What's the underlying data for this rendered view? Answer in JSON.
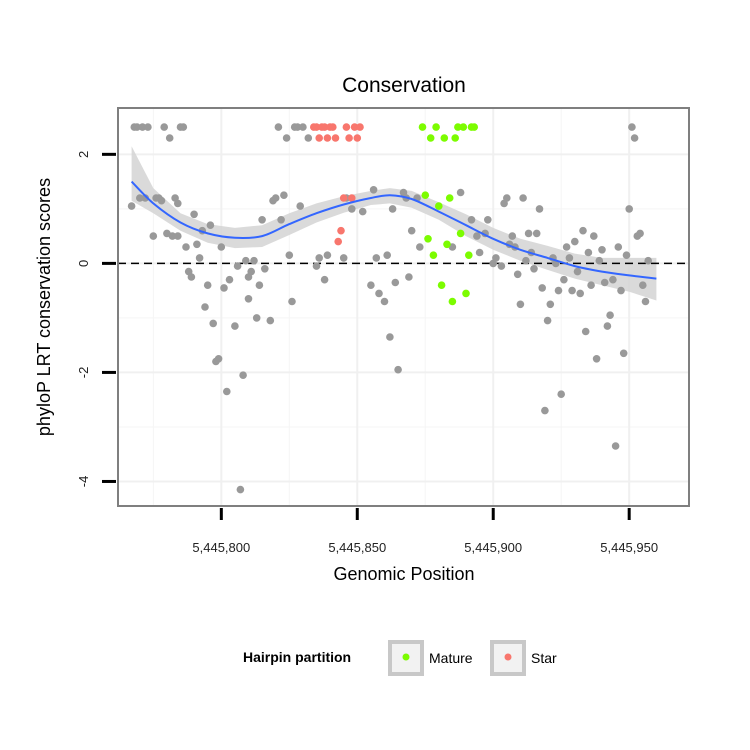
{
  "chart_data": {
    "type": "scatter",
    "title": "Conservation",
    "xlabel": "Genomic Position",
    "ylabel": "phyloP LRT conservation scores",
    "xlim": [
      5445762,
      5445972
    ],
    "ylim": [
      -4.45,
      2.85
    ],
    "x_ticks": [
      5445800,
      5445850,
      5445900,
      5445950
    ],
    "x_tick_labels": [
      "5,445,800",
      "5,445,850",
      "5,445,900",
      "5,445,950"
    ],
    "y_ticks": [
      -4,
      -2,
      0,
      2
    ],
    "y_tick_labels": [
      "-4",
      "-2",
      "0",
      "2"
    ],
    "reference_line": {
      "y": 0,
      "style": "dashed"
    },
    "grid": true,
    "colors": {
      "other": "#999999",
      "mature": "#7cfc00",
      "star": "#f8766d",
      "smooth": "#3366ff",
      "ribbon": "#d3d3d3",
      "border": "#7f7f7f",
      "refline": "#000000"
    },
    "legend": {
      "title": "Hairpin partition",
      "position": "bottom",
      "entries": [
        {
          "key": "mature",
          "label": "Mature"
        },
        {
          "key": "star",
          "label": "Star"
        }
      ]
    },
    "series": [
      {
        "name": "Other",
        "key": "other",
        "points": [
          [
            5445767,
            1.05
          ],
          [
            5445768,
            2.5
          ],
          [
            5445769,
            2.5
          ],
          [
            5445770,
            1.2
          ],
          [
            5445771,
            2.5
          ],
          [
            5445772,
            1.2
          ],
          [
            5445773,
            2.5
          ],
          [
            5445775,
            0.5
          ],
          [
            5445776,
            1.2
          ],
          [
            5445777,
            1.2
          ],
          [
            5445778,
            1.15
          ],
          [
            5445779,
            2.5
          ],
          [
            5445780,
            0.55
          ],
          [
            5445781,
            2.3
          ],
          [
            5445782,
            0.5
          ],
          [
            5445783,
            1.2
          ],
          [
            5445784,
            1.1
          ],
          [
            5445784,
            0.5
          ],
          [
            5445785,
            2.5
          ],
          [
            5445786,
            2.5
          ],
          [
            5445787,
            0.3
          ],
          [
            5445788,
            -0.15
          ],
          [
            5445789,
            -0.25
          ],
          [
            5445790,
            0.9
          ],
          [
            5445791,
            0.35
          ],
          [
            5445792,
            0.1
          ],
          [
            5445793,
            0.6
          ],
          [
            5445794,
            -0.8
          ],
          [
            5445795,
            -0.4
          ],
          [
            5445796,
            0.7
          ],
          [
            5445797,
            -1.1
          ],
          [
            5445798,
            -1.8
          ],
          [
            5445799,
            -1.75
          ],
          [
            5445800,
            0.3
          ],
          [
            5445801,
            -0.45
          ],
          [
            5445802,
            -2.35
          ],
          [
            5445803,
            -0.3
          ],
          [
            5445805,
            -1.15
          ],
          [
            5445806,
            -0.05
          ],
          [
            5445807,
            -4.15
          ],
          [
            5445808,
            -2.05
          ],
          [
            5445809,
            0.05
          ],
          [
            5445810,
            -0.25
          ],
          [
            5445810,
            -0.65
          ],
          [
            5445811,
            -0.15
          ],
          [
            5445812,
            0.05
          ],
          [
            5445813,
            -1.0
          ],
          [
            5445814,
            -0.4
          ],
          [
            5445815,
            0.8
          ],
          [
            5445816,
            -0.1
          ],
          [
            5445818,
            -1.05
          ],
          [
            5445819,
            1.15
          ],
          [
            5445820,
            1.2
          ],
          [
            5445821,
            2.5
          ],
          [
            5445822,
            0.8
          ],
          [
            5445823,
            1.25
          ],
          [
            5445824,
            2.3
          ],
          [
            5445825,
            0.15
          ],
          [
            5445826,
            -0.7
          ],
          [
            5445827,
            2.5
          ],
          [
            5445828,
            2.5
          ],
          [
            5445829,
            1.05
          ],
          [
            5445830,
            2.5
          ],
          [
            5445832,
            2.3
          ],
          [
            5445835,
            -0.05
          ],
          [
            5445836,
            0.1
          ],
          [
            5445838,
            -0.3
          ],
          [
            5445839,
            0.15
          ],
          [
            5445845,
            0.1
          ],
          [
            5445846,
            1.2
          ],
          [
            5445848,
            1.0
          ],
          [
            5445852,
            0.95
          ],
          [
            5445855,
            -0.4
          ],
          [
            5445856,
            1.35
          ],
          [
            5445857,
            0.1
          ],
          [
            5445858,
            -0.55
          ],
          [
            5445860,
            -0.7
          ],
          [
            5445861,
            0.15
          ],
          [
            5445862,
            -1.35
          ],
          [
            5445863,
            1.0
          ],
          [
            5445864,
            -0.35
          ],
          [
            5445865,
            -1.95
          ],
          [
            5445867,
            1.3
          ],
          [
            5445868,
            1.2
          ],
          [
            5445869,
            -0.25
          ],
          [
            5445870,
            0.6
          ],
          [
            5445872,
            1.2
          ],
          [
            5445873,
            0.3
          ],
          [
            5445885,
            0.3
          ],
          [
            5445888,
            1.3
          ],
          [
            5445892,
            0.8
          ],
          [
            5445894,
            0.5
          ],
          [
            5445895,
            0.2
          ],
          [
            5445897,
            0.55
          ],
          [
            5445898,
            0.8
          ],
          [
            5445900,
            0.0
          ],
          [
            5445901,
            0.1
          ],
          [
            5445903,
            -0.05
          ],
          [
            5445904,
            1.1
          ],
          [
            5445905,
            1.2
          ],
          [
            5445906,
            0.35
          ],
          [
            5445907,
            0.5
          ],
          [
            5445908,
            0.3
          ],
          [
            5445909,
            -0.2
          ],
          [
            5445910,
            -0.75
          ],
          [
            5445911,
            1.2
          ],
          [
            5445912,
            0.05
          ],
          [
            5445913,
            0.55
          ],
          [
            5445914,
            0.2
          ],
          [
            5445915,
            -0.1
          ],
          [
            5445916,
            0.55
          ],
          [
            5445917,
            1.0
          ],
          [
            5445918,
            -0.45
          ],
          [
            5445919,
            -2.7
          ],
          [
            5445920,
            -1.05
          ],
          [
            5445921,
            -0.75
          ],
          [
            5445922,
            0.1
          ],
          [
            5445923,
            0.0
          ],
          [
            5445924,
            -0.5
          ],
          [
            5445925,
            -2.4
          ],
          [
            5445926,
            -0.3
          ],
          [
            5445927,
            0.3
          ],
          [
            5445928,
            0.1
          ],
          [
            5445929,
            -0.5
          ],
          [
            5445930,
            0.4
          ],
          [
            5445931,
            -0.15
          ],
          [
            5445932,
            -0.55
          ],
          [
            5445933,
            0.6
          ],
          [
            5445934,
            -1.25
          ],
          [
            5445935,
            0.2
          ],
          [
            5445936,
            -0.4
          ],
          [
            5445937,
            0.5
          ],
          [
            5445938,
            -1.75
          ],
          [
            5445939,
            0.05
          ],
          [
            5445940,
            0.25
          ],
          [
            5445941,
            -0.35
          ],
          [
            5445942,
            -1.15
          ],
          [
            5445943,
            -0.95
          ],
          [
            5445944,
            -0.3
          ],
          [
            5445945,
            -3.35
          ],
          [
            5445946,
            0.3
          ],
          [
            5445947,
            -0.5
          ],
          [
            5445948,
            -1.65
          ],
          [
            5445949,
            0.15
          ],
          [
            5445950,
            1.0
          ],
          [
            5445951,
            2.5
          ],
          [
            5445952,
            2.3
          ],
          [
            5445953,
            0.5
          ],
          [
            5445954,
            0.55
          ],
          [
            5445955,
            -0.4
          ],
          [
            5445956,
            -0.7
          ],
          [
            5445957,
            0.05
          ]
        ]
      },
      {
        "name": "Mature",
        "key": "mature",
        "points": [
          [
            5445874,
            2.5
          ],
          [
            5445875,
            1.25
          ],
          [
            5445876,
            0.45
          ],
          [
            5445877,
            2.3
          ],
          [
            5445878,
            0.15
          ],
          [
            5445879,
            2.5
          ],
          [
            5445880,
            1.05
          ],
          [
            5445881,
            -0.4
          ],
          [
            5445882,
            2.3
          ],
          [
            5445883,
            0.35
          ],
          [
            5445884,
            1.2
          ],
          [
            5445885,
            -0.7
          ],
          [
            5445886,
            2.3
          ],
          [
            5445887,
            2.5
          ],
          [
            5445888,
            0.55
          ],
          [
            5445889,
            2.5
          ],
          [
            5445890,
            -0.55
          ],
          [
            5445891,
            0.15
          ],
          [
            5445892,
            2.5
          ],
          [
            5445893,
            2.5
          ]
        ]
      },
      {
        "name": "Star",
        "key": "star",
        "points": [
          [
            5445834,
            2.5
          ],
          [
            5445835,
            2.5
          ],
          [
            5445836,
            2.3
          ],
          [
            5445837,
            2.5
          ],
          [
            5445838,
            2.5
          ],
          [
            5445839,
            2.3
          ],
          [
            5445840,
            2.5
          ],
          [
            5445841,
            2.5
          ],
          [
            5445842,
            2.3
          ],
          [
            5445843,
            0.4
          ],
          [
            5445844,
            0.6
          ],
          [
            5445845,
            1.2
          ],
          [
            5445846,
            2.5
          ],
          [
            5445847,
            2.3
          ],
          [
            5445848,
            1.2
          ],
          [
            5445849,
            2.5
          ],
          [
            5445850,
            2.3
          ],
          [
            5445851,
            2.5
          ]
        ]
      }
    ],
    "smooth": {
      "x": [
        5445767,
        5445775,
        5445785,
        5445795,
        5445805,
        5445815,
        5445825,
        5445835,
        5445845,
        5445855,
        5445862,
        5445870,
        5445880,
        5445890,
        5445900,
        5445910,
        5445920,
        5445930,
        5445940,
        5445950,
        5445960
      ],
      "y": [
        1.5,
        1.1,
        0.75,
        0.55,
        0.47,
        0.5,
        0.72,
        0.92,
        1.08,
        1.2,
        1.25,
        1.18,
        0.95,
        0.7,
        0.45,
        0.25,
        0.1,
        -0.05,
        -0.15,
        -0.22,
        -0.28
      ],
      "lower": [
        1.15,
        0.92,
        0.6,
        0.38,
        0.28,
        0.3,
        0.52,
        0.75,
        0.93,
        1.07,
        1.1,
        1.02,
        0.8,
        0.5,
        0.25,
        0.05,
        -0.12,
        -0.28,
        -0.4,
        -0.52,
        -0.68
      ],
      "upper": [
        2.15,
        1.38,
        0.92,
        0.72,
        0.65,
        0.7,
        0.92,
        1.1,
        1.23,
        1.33,
        1.38,
        1.33,
        1.12,
        0.9,
        0.65,
        0.45,
        0.32,
        0.18,
        0.1,
        0.1,
        0.1
      ]
    }
  }
}
